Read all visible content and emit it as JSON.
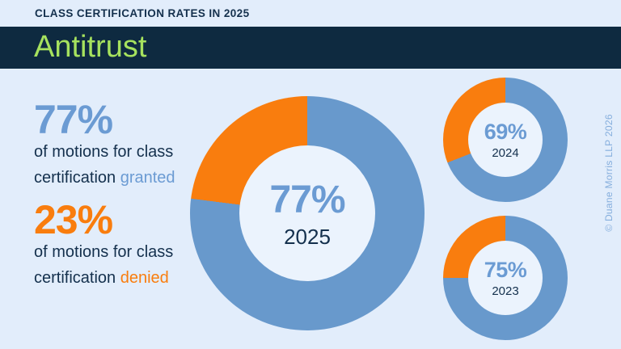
{
  "header": {
    "title": "CLASS CERTIFICATION RATES IN 2025"
  },
  "banner": {
    "title": "Antitrust"
  },
  "colors": {
    "banner_navy": "#0e2a40",
    "text_navy": "#14304d",
    "accent_blue": "#6b9bd3",
    "accent_orange": "#f97d0e",
    "banner_green": "#a6e25e",
    "background": "#e2edfb",
    "donut_hole": "#ebf3fd",
    "copyright_blue": "#85aedd"
  },
  "stats": {
    "granted": {
      "value": "77%",
      "line1": "of motions for class",
      "line2_prefix": "certification ",
      "line2_highlight": "granted"
    },
    "denied": {
      "value": "23%",
      "line1": "of motions for class",
      "line2_prefix": "certification ",
      "line2_highlight": "denied"
    }
  },
  "chart_data": {
    "type": "pie",
    "subtype": "donut",
    "slice_labels": [
      "granted",
      "denied"
    ],
    "slice_colors": [
      "#6899cc",
      "#f97d0e"
    ],
    "charts": [
      {
        "year": "2025",
        "values": [
          77,
          23
        ],
        "center_label": "77%"
      },
      {
        "year": "2024",
        "values": [
          69,
          31
        ],
        "center_label": "69%"
      },
      {
        "year": "2023",
        "values": [
          75,
          25
        ],
        "center_label": "75%"
      }
    ],
    "title": "Class Certification Rates in 2025 — Antitrust",
    "legend_position": "none"
  },
  "footer": {
    "copyright": "© Duane Morris LLP 2026"
  }
}
